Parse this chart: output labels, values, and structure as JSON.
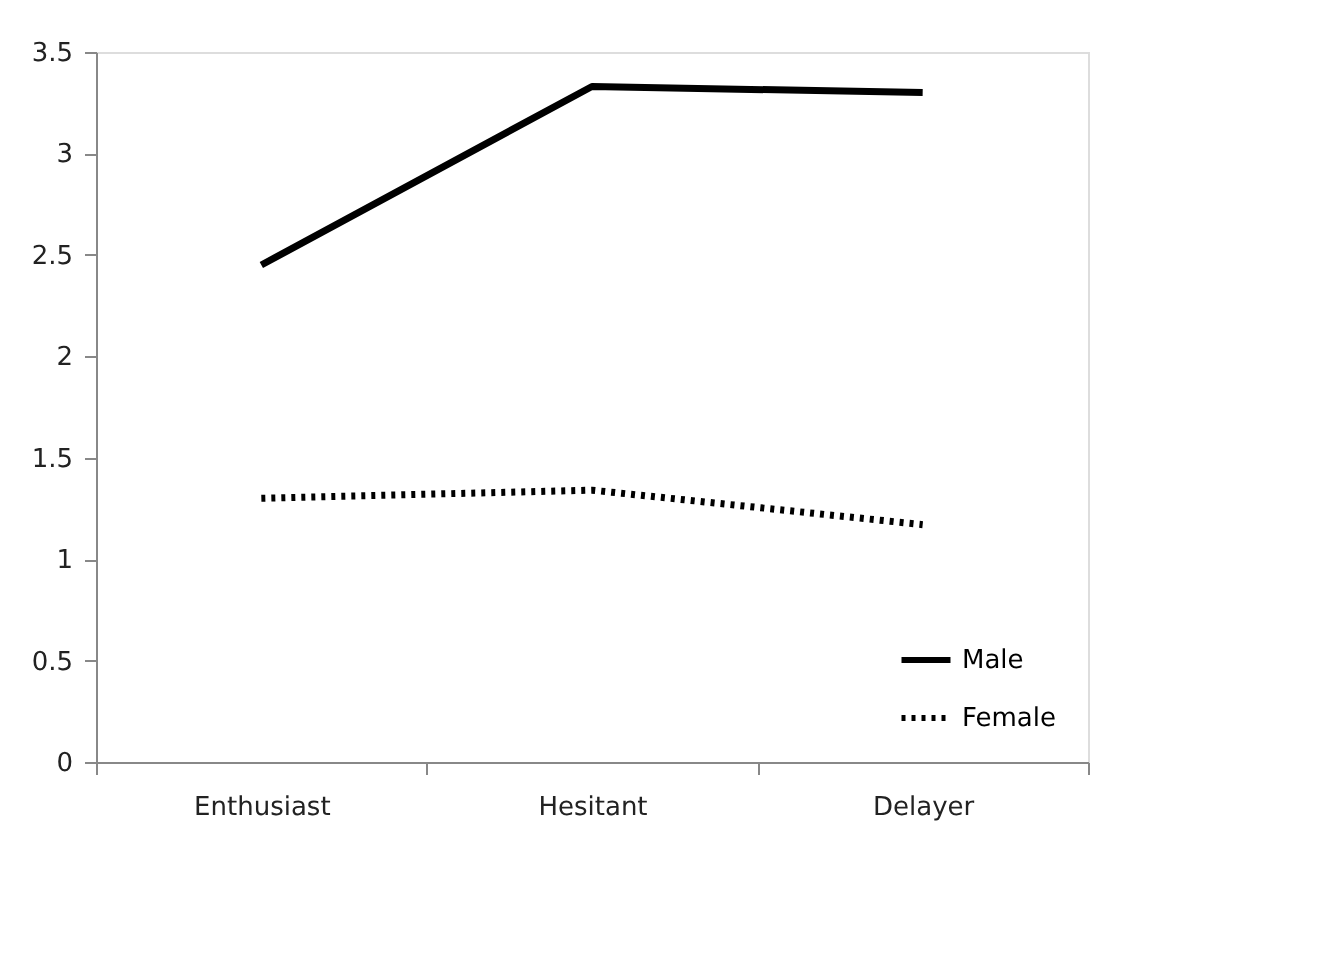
{
  "chart_data": {
    "type": "line",
    "categories": [
      "Enthusiast",
      "Hesitant",
      "Delayer"
    ],
    "series": [
      {
        "name": "Male",
        "color": "#000000",
        "line_style": "solid",
        "values": [
          2.45,
          3.33,
          3.3
        ]
      },
      {
        "name": "Female",
        "color": "#000000",
        "line_style": "dotted",
        "values": [
          1.3,
          1.34,
          1.17
        ]
      }
    ],
    "ylim": [
      0,
      3.5
    ],
    "yticks": [
      0,
      0.5,
      1,
      1.5,
      2,
      2.5,
      3,
      3.5
    ],
    "grid": false,
    "legend": "bottom right",
    "marker": "none"
  }
}
